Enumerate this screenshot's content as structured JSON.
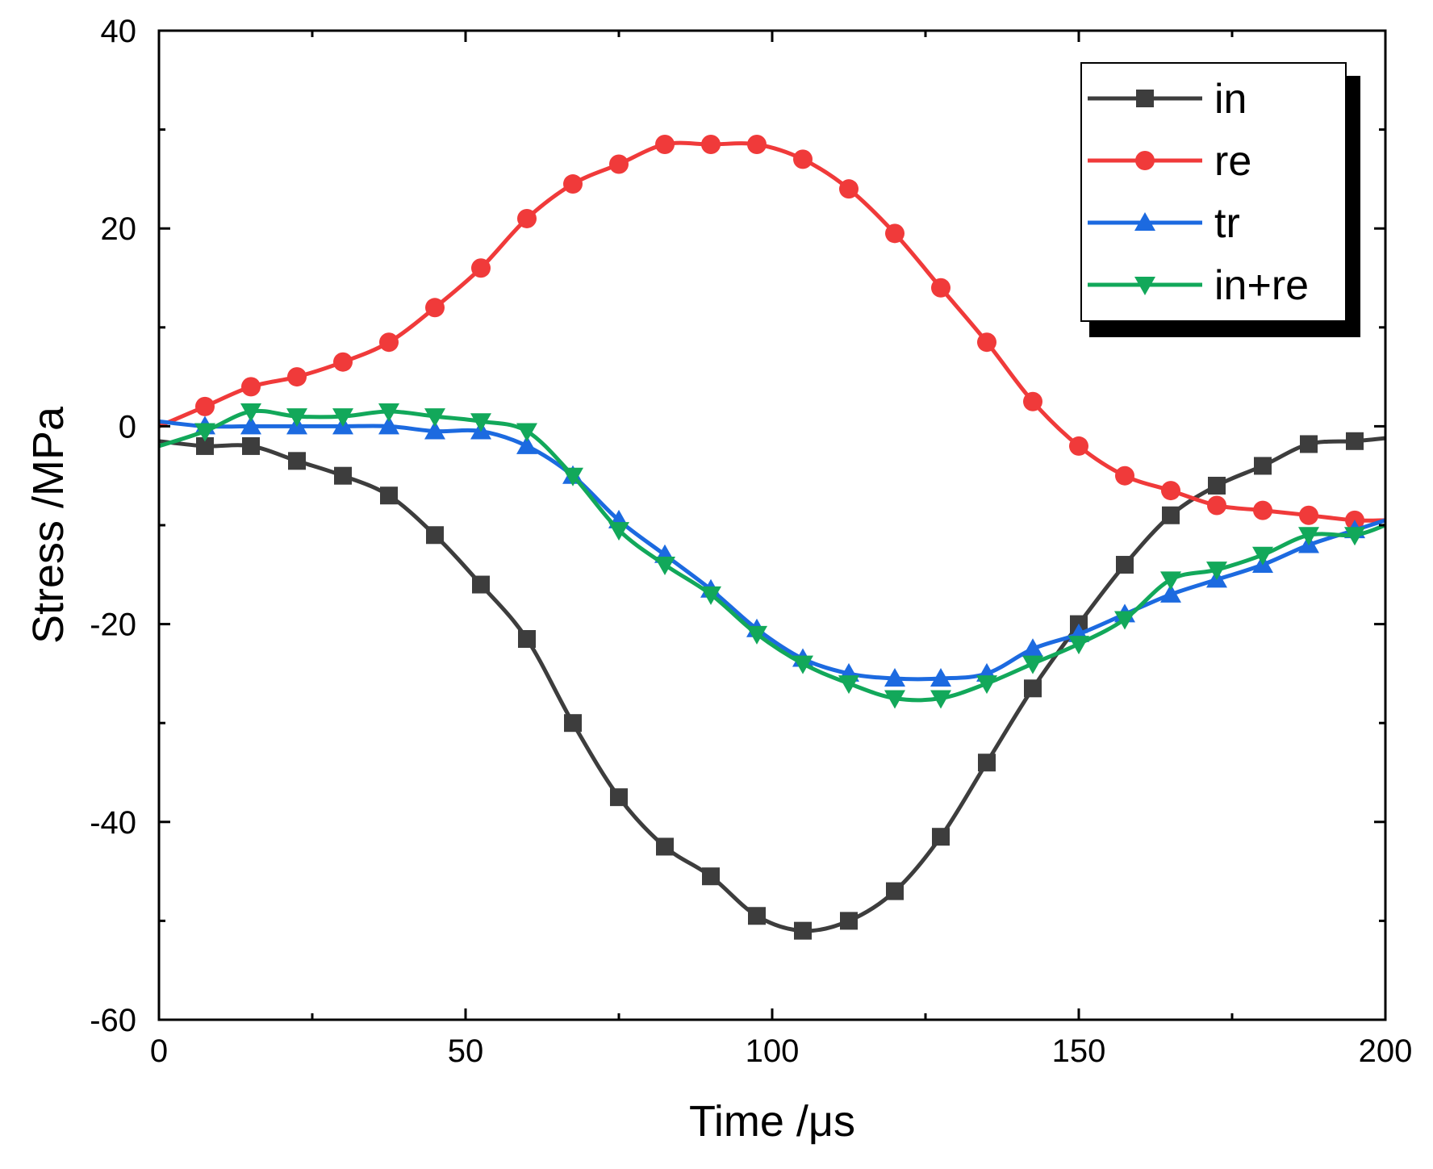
{
  "chart_data": {
    "type": "line",
    "title": "",
    "xlabel": "Time /μs",
    "ylabel": "Stress /MPa",
    "xlim": [
      0,
      200
    ],
    "ylim": [
      -60,
      40
    ],
    "xticks": [
      0,
      50,
      100,
      150,
      200
    ],
    "yticks": [
      -60,
      -40,
      -20,
      0,
      20,
      40
    ],
    "xtick_labels": [
      "0",
      "50",
      "100",
      "150",
      "200"
    ],
    "ytick_labels": [
      "-60",
      "-40",
      "-20",
      "0",
      "20",
      "40"
    ],
    "x": [
      0,
      7.5,
      15,
      22.5,
      30,
      37.5,
      45,
      52.5,
      60,
      67.5,
      75,
      82.5,
      90,
      97.5,
      105,
      112.5,
      120,
      127.5,
      135,
      142.5,
      150,
      157.5,
      165,
      172.5,
      180,
      187.5,
      195,
      200
    ],
    "grid": false,
    "legend_position": "top-right",
    "series": [
      {
        "name": "in",
        "color": "#3d3d3d",
        "marker": "square",
        "values": [
          -1.5,
          -2,
          -2,
          -3.5,
          -5,
          -7,
          -11,
          -16,
          -21.5,
          -30,
          -37.5,
          -42.5,
          -45.5,
          -49.5,
          -51,
          -50,
          -47,
          -41.5,
          -34,
          -26.5,
          -20,
          -14,
          -9,
          -6,
          -4,
          -1.8,
          -1.5,
          -1.2
        ]
      },
      {
        "name": "re",
        "color": "#f03a3a",
        "marker": "circle",
        "values": [
          0,
          2,
          4,
          5,
          6.5,
          8.5,
          12,
          16,
          21,
          24.5,
          26.5,
          28.5,
          28.5,
          28.5,
          27,
          24,
          19.5,
          14,
          8.5,
          2.5,
          -2,
          -5,
          -6.5,
          -8,
          -8.5,
          -9,
          -9.5,
          -9.5
        ]
      },
      {
        "name": "tr",
        "color": "#1c6ae0",
        "marker": "triangle-up",
        "values": [
          0.5,
          0,
          0,
          0,
          0,
          0,
          -0.5,
          -0.5,
          -2,
          -5,
          -9.5,
          -13,
          -16.5,
          -20.5,
          -23.5,
          -25,
          -25.5,
          -25.5,
          -25,
          -22.5,
          -21,
          -19,
          -17,
          -15.5,
          -14,
          -12,
          -10.5,
          -9.5
        ]
      },
      {
        "name": "in+re",
        "color": "#12a85a",
        "marker": "triangle-down",
        "values": [
          -2,
          -0.5,
          1.5,
          1,
          1,
          1.5,
          1,
          0.5,
          -0.5,
          -5,
          -10.5,
          -14,
          -17,
          -21,
          -24,
          -26,
          -27.5,
          -27.5,
          -26,
          -24,
          -22,
          -19.5,
          -15.5,
          -14.5,
          -13,
          -11,
          -11,
          -10
        ]
      }
    ]
  }
}
